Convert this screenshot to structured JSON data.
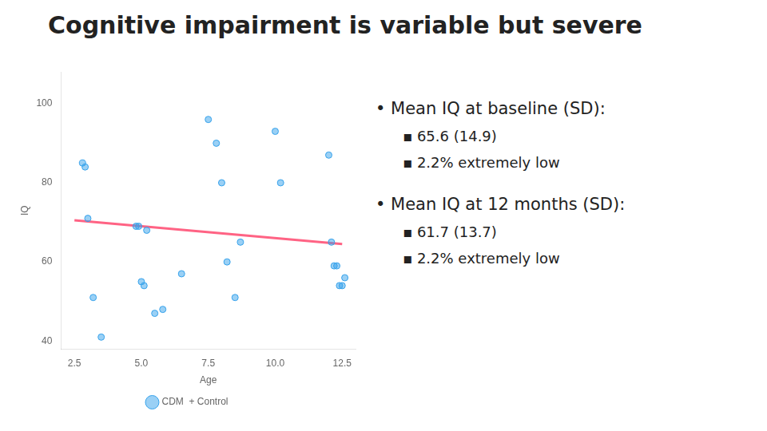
{
  "chart_data": {
    "type": "scatter",
    "title": "Cognitive impairment is variable but severe",
    "x_label": "Age",
    "y_label": "IQ",
    "series": [
      {
        "name": "CDM  + Control",
        "type": "scatter",
        "marker": "circle",
        "values": [
          [
            2.8,
            85
          ],
          [
            2.9,
            84
          ],
          [
            3.0,
            71
          ],
          [
            3.2,
            51
          ],
          [
            3.5,
            41
          ],
          [
            4.8,
            69
          ],
          [
            4.9,
            69
          ],
          [
            5.0,
            55
          ],
          [
            5.1,
            54
          ],
          [
            5.2,
            68
          ],
          [
            5.5,
            47
          ],
          [
            5.8,
            48
          ],
          [
            6.5,
            57
          ],
          [
            7.5,
            96
          ],
          [
            7.8,
            90
          ],
          [
            8.0,
            80
          ],
          [
            8.2,
            60
          ],
          [
            8.5,
            51
          ],
          [
            8.7,
            65
          ],
          [
            10.0,
            93
          ],
          [
            10.2,
            80
          ],
          [
            12.0,
            87
          ],
          [
            12.1,
            65
          ],
          [
            12.2,
            59
          ],
          [
            12.3,
            59
          ],
          [
            12.4,
            54
          ],
          [
            12.5,
            54
          ],
          [
            12.6,
            56
          ]
        ]
      },
      {
        "type": "line",
        "line_style": "solid",
        "values": [
          [
            2.5,
            70.5
          ],
          [
            12.5,
            64.5
          ]
        ]
      }
    ],
    "xlim": [
      2.0,
      13.0
    ],
    "ylim": [
      38,
      108
    ],
    "xticks": [
      {
        "value": 2.5,
        "label": "2.5"
      },
      {
        "value": 5.0,
        "label": "5.0"
      },
      {
        "value": 7.5,
        "label": "7.5"
      },
      {
        "value": 10.0,
        "label": "10.0"
      },
      {
        "value": 12.5,
        "label": "12.5"
      }
    ],
    "yticks": [
      40,
      60,
      80,
      100
    ],
    "grid": false,
    "legend": "bottom",
    "annotations": [
      [
        "• Mean IQ at baseline (SD):",
        "▪ 65.6 (14.9)",
        "▪ 2.2% extremely low"
      ],
      [
        "• Mean IQ at 12 months (SD):",
        "▪ 61.7 (13.7)",
        "▪ 2.2% extremely low"
      ]
    ]
  }
}
